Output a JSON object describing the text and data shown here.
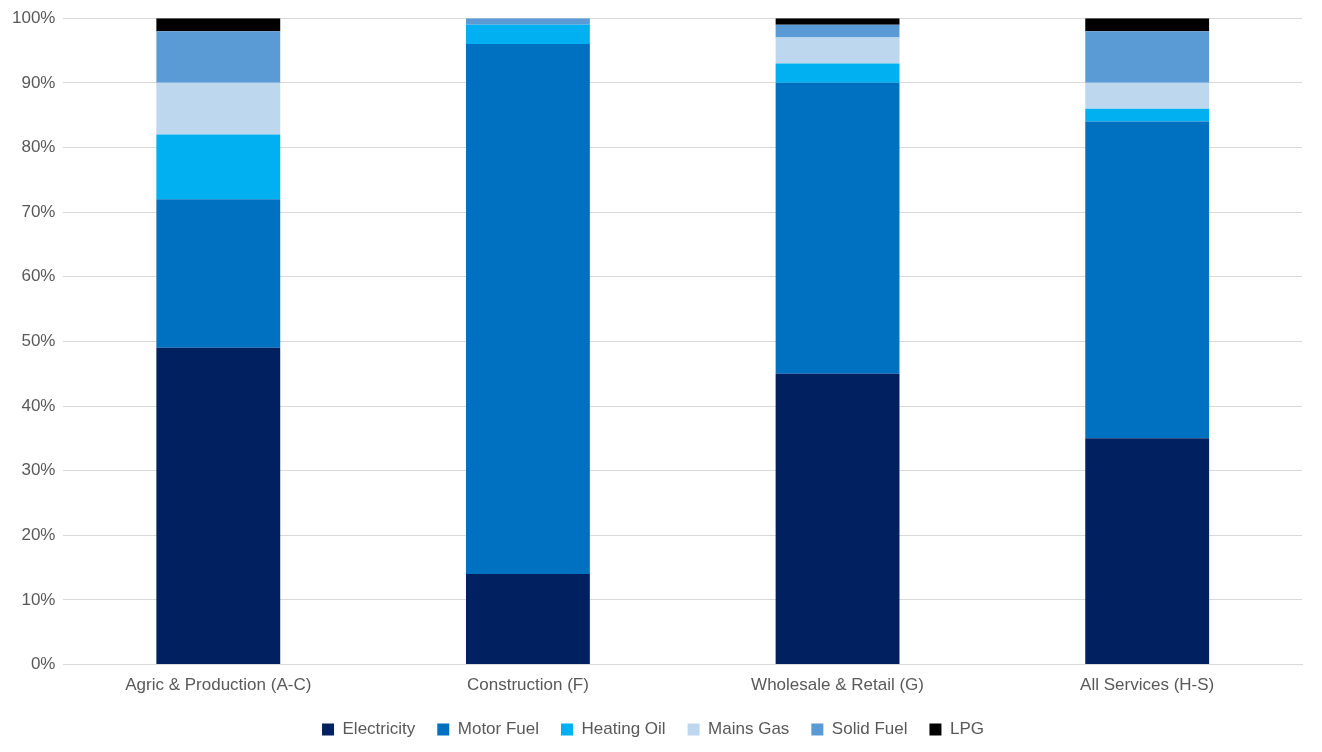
{
  "chart_data": {
    "type": "bar",
    "stacked": true,
    "categories": [
      "Agric & Production (A-C)",
      "Construction (F)",
      "Wholesale & Retail (G)",
      "All Services (H-S)"
    ],
    "series": [
      {
        "name": "Electricity",
        "color": "#002060",
        "values": [
          49,
          14,
          45,
          35
        ]
      },
      {
        "name": "Motor Fuel",
        "color": "#0070c0",
        "values": [
          23,
          82,
          45,
          49
        ]
      },
      {
        "name": "Heating Oil",
        "color": "#00b0f0",
        "values": [
          10,
          3,
          3,
          2
        ]
      },
      {
        "name": "Mains Gas",
        "color": "#bdd7ee",
        "values": [
          8,
          0,
          4,
          4
        ]
      },
      {
        "name": "Solid Fuel",
        "color": "#5b9bd5",
        "values": [
          8,
          1,
          2,
          8
        ]
      },
      {
        "name": "LPG",
        "color": "#000000",
        "values": [
          2,
          0,
          1,
          2
        ]
      }
    ],
    "ylim": [
      0,
      100
    ],
    "yticks": [
      {
        "value": 0,
        "label": "0%"
      },
      {
        "value": 10,
        "label": "10%"
      },
      {
        "value": 20,
        "label": "20%"
      },
      {
        "value": 30,
        "label": "30%"
      },
      {
        "value": 40,
        "label": "40%"
      },
      {
        "value": 50,
        "label": "50%"
      },
      {
        "value": 60,
        "label": "60%"
      },
      {
        "value": 70,
        "label": "70%"
      },
      {
        "value": 80,
        "label": "80%"
      },
      {
        "value": 90,
        "label": "90%"
      },
      {
        "value": 100,
        "label": "100%"
      }
    ],
    "grid": "y",
    "legend": "bottom"
  }
}
